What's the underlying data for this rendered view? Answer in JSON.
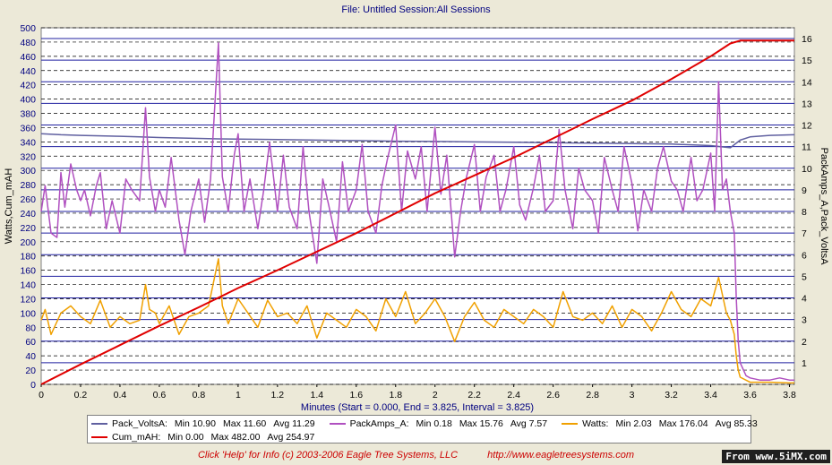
{
  "header": {
    "title": "File: Untitled   Session:All Sessions"
  },
  "footer": {
    "info": "Click 'Help' for Info  (c) 2003-2006 Eagle Tree Systems, LLC",
    "url": "http://www.eagletreesystems.com"
  },
  "watermark": "From www.5iMX.com",
  "legend": [
    {
      "name": "Pack_VoltsA:",
      "min": "Min 10.90",
      "max": "Max 11.60",
      "avg": "Avg 11.29",
      "color": "#6060a0"
    },
    {
      "name": "PackAmps_A:",
      "min": "Min 0.18",
      "max": "Max 15.76",
      "avg": "Avg 7.57",
      "color": "#b050c0"
    },
    {
      "name": "Watts:",
      "min": "Min 2.03",
      "max": "Max 176.04",
      "avg": "Avg 85.33",
      "color": "#f0a000"
    },
    {
      "name": "Cum_mAH:",
      "min": "Min 0.00",
      "max": "Max 482.00",
      "avg": "Avg 254.97",
      "color": "#e00000"
    }
  ],
  "chart_data": {
    "type": "line",
    "xlabel": "Minutes (Start = 0.000,  End = 3.825,  Interval = 3.825)",
    "ylabel_left": "Watts,Cum_mAH",
    "ylabel_right": "PackAmps_A,Pack_VoltsA",
    "xlim": [
      0,
      3.825
    ],
    "ylim_left": [
      0,
      500
    ],
    "ylim_right": [
      0,
      16.5
    ],
    "x_ticks": [
      "0",
      "0.2",
      "0.4",
      "0.6",
      "0.8",
      "1",
      "1.2",
      "1.4",
      "1.6",
      "1.8",
      "2",
      "2.2",
      "2.4",
      "2.6",
      "2.8",
      "3",
      "3.2",
      "3.4",
      "3.6",
      "3.8"
    ],
    "y_left_ticks": [
      "0",
      "20",
      "40",
      "60",
      "80",
      "100",
      "120",
      "140",
      "160",
      "180",
      "200",
      "220",
      "240",
      "260",
      "280",
      "300",
      "320",
      "340",
      "360",
      "380",
      "400",
      "420",
      "440",
      "460",
      "480",
      "500"
    ],
    "y_right_ticks": [
      "1",
      "2",
      "3",
      "4",
      "5",
      "6",
      "7",
      "8",
      "9",
      "10",
      "11",
      "12",
      "13",
      "14",
      "15",
      "16"
    ],
    "grid": true,
    "series": [
      {
        "name": "Pack_VoltsA",
        "axis": "right",
        "color": "#6060a0",
        "x": [
          0,
          0.1,
          0.2,
          0.3,
          0.4,
          0.5,
          0.6,
          0.7,
          0.8,
          0.9,
          1.0,
          1.2,
          1.4,
          1.6,
          1.8,
          2.0,
          2.2,
          2.4,
          2.6,
          2.8,
          3.0,
          3.2,
          3.4,
          3.5,
          3.55,
          3.6,
          3.7,
          3.825
        ],
        "y": [
          11.6,
          11.55,
          11.52,
          11.5,
          11.48,
          11.45,
          11.42,
          11.4,
          11.38,
          11.36,
          11.35,
          11.33,
          11.3,
          11.28,
          11.25,
          11.24,
          11.22,
          11.2,
          11.18,
          11.16,
          11.14,
          11.12,
          11.05,
          10.95,
          11.3,
          11.45,
          11.52,
          11.55
        ]
      },
      {
        "name": "PackAmps_A",
        "axis": "right",
        "color": "#b050c0",
        "x": [
          0,
          0.02,
          0.05,
          0.08,
          0.1,
          0.12,
          0.15,
          0.18,
          0.2,
          0.22,
          0.25,
          0.28,
          0.3,
          0.33,
          0.36,
          0.4,
          0.43,
          0.46,
          0.5,
          0.53,
          0.55,
          0.58,
          0.6,
          0.63,
          0.66,
          0.7,
          0.73,
          0.76,
          0.8,
          0.83,
          0.86,
          0.9,
          0.92,
          0.95,
          0.98,
          1.0,
          1.03,
          1.06,
          1.1,
          1.13,
          1.16,
          1.2,
          1.23,
          1.26,
          1.3,
          1.33,
          1.36,
          1.4,
          1.43,
          1.46,
          1.5,
          1.53,
          1.56,
          1.6,
          1.63,
          1.66,
          1.7,
          1.73,
          1.76,
          1.8,
          1.83,
          1.86,
          1.9,
          1.93,
          1.96,
          2.0,
          2.03,
          2.06,
          2.1,
          2.13,
          2.16,
          2.2,
          2.23,
          2.26,
          2.3,
          2.33,
          2.36,
          2.4,
          2.43,
          2.46,
          2.5,
          2.53,
          2.56,
          2.6,
          2.63,
          2.66,
          2.7,
          2.73,
          2.76,
          2.8,
          2.83,
          2.86,
          2.9,
          2.93,
          2.96,
          3.0,
          3.03,
          3.06,
          3.1,
          3.13,
          3.16,
          3.2,
          3.23,
          3.26,
          3.3,
          3.33,
          3.36,
          3.4,
          3.42,
          3.44,
          3.46,
          3.48,
          3.5,
          3.52,
          3.53,
          3.54,
          3.55,
          3.58,
          3.6,
          3.65,
          3.7,
          3.75,
          3.8,
          3.825
        ],
        "y": [
          8.0,
          9.2,
          7.0,
          6.8,
          9.8,
          8.2,
          10.2,
          9.0,
          8.5,
          9.0,
          7.8,
          9.2,
          9.8,
          7.2,
          8.5,
          7.0,
          9.5,
          9.0,
          8.5,
          12.8,
          9.6,
          8.0,
          9.0,
          8.2,
          10.5,
          7.6,
          6.0,
          8.0,
          9.5,
          7.5,
          9.5,
          15.8,
          9.6,
          8.0,
          10.6,
          11.6,
          8.0,
          9.5,
          7.2,
          9.0,
          11.2,
          8.0,
          10.6,
          8.2,
          7.2,
          11.0,
          8.0,
          5.6,
          9.5,
          8.3,
          6.6,
          10.3,
          8.0,
          9.0,
          11.1,
          8.0,
          7.0,
          9.2,
          10.5,
          12.0,
          8.0,
          10.8,
          9.5,
          11.0,
          8.0,
          11.9,
          8.8,
          10.6,
          5.9,
          8.0,
          9.6,
          11.1,
          8.0,
          9.6,
          10.6,
          8.0,
          9.0,
          11.0,
          8.3,
          7.6,
          9.1,
          10.6,
          8.0,
          8.5,
          11.8,
          9.0,
          7.2,
          10.0,
          9.0,
          8.5,
          7.0,
          10.5,
          9.0,
          8.0,
          11.0,
          9.3,
          7.1,
          9.0,
          8.0,
          10.0,
          11.0,
          9.4,
          9.0,
          8.0,
          10.5,
          8.5,
          9.0,
          10.7,
          8.0,
          14.0,
          9.0,
          9.5,
          8.0,
          7.0,
          4.0,
          2.0,
          1.0,
          0.4,
          0.3,
          0.2,
          0.2,
          0.3,
          0.2,
          0.2
        ]
      },
      {
        "name": "Watts",
        "axis": "left",
        "color": "#f0a000",
        "x": [
          0,
          0.02,
          0.05,
          0.1,
          0.15,
          0.2,
          0.25,
          0.3,
          0.35,
          0.4,
          0.45,
          0.5,
          0.53,
          0.55,
          0.58,
          0.6,
          0.65,
          0.7,
          0.75,
          0.8,
          0.85,
          0.9,
          0.92,
          0.95,
          1.0,
          1.05,
          1.1,
          1.15,
          1.2,
          1.25,
          1.3,
          1.35,
          1.4,
          1.45,
          1.5,
          1.55,
          1.6,
          1.65,
          1.7,
          1.75,
          1.8,
          1.85,
          1.9,
          1.95,
          2.0,
          2.05,
          2.1,
          2.15,
          2.2,
          2.25,
          2.3,
          2.35,
          2.4,
          2.45,
          2.5,
          2.55,
          2.6,
          2.65,
          2.7,
          2.75,
          2.8,
          2.85,
          2.9,
          2.95,
          3.0,
          3.05,
          3.1,
          3.15,
          3.2,
          3.25,
          3.3,
          3.35,
          3.4,
          3.44,
          3.48,
          3.5,
          3.52,
          3.53,
          3.54,
          3.55,
          3.6,
          3.7,
          3.8,
          3.825
        ],
        "y": [
          90,
          105,
          70,
          100,
          110,
          95,
          85,
          118,
          80,
          95,
          85,
          90,
          140,
          105,
          100,
          85,
          110,
          70,
          95,
          100,
          110,
          176,
          110,
          85,
          120,
          100,
          80,
          118,
          95,
          100,
          85,
          110,
          65,
          100,
          90,
          80,
          105,
          95,
          75,
          120,
          95,
          130,
          85,
          100,
          120,
          95,
          60,
          95,
          115,
          90,
          80,
          105,
          95,
          85,
          105,
          95,
          80,
          130,
          95,
          90,
          100,
          85,
          110,
          80,
          105,
          95,
          75,
          100,
          130,
          105,
          95,
          120,
          110,
          150,
          100,
          90,
          70,
          40,
          20,
          10,
          3,
          3,
          2,
          2
        ]
      },
      {
        "name": "Cum_mAH",
        "axis": "left",
        "color": "#e00000",
        "x": [
          0,
          0.2,
          0.4,
          0.6,
          0.8,
          1.0,
          1.2,
          1.4,
          1.6,
          1.8,
          2.0,
          2.2,
          2.4,
          2.6,
          2.8,
          3.0,
          3.2,
          3.4,
          3.5,
          3.55,
          3.6,
          3.825
        ],
        "y": [
          0,
          28,
          55,
          82,
          108,
          135,
          160,
          186,
          212,
          240,
          268,
          293,
          318,
          345,
          372,
          398,
          428,
          460,
          478,
          482,
          482,
          482
        ]
      }
    ]
  }
}
